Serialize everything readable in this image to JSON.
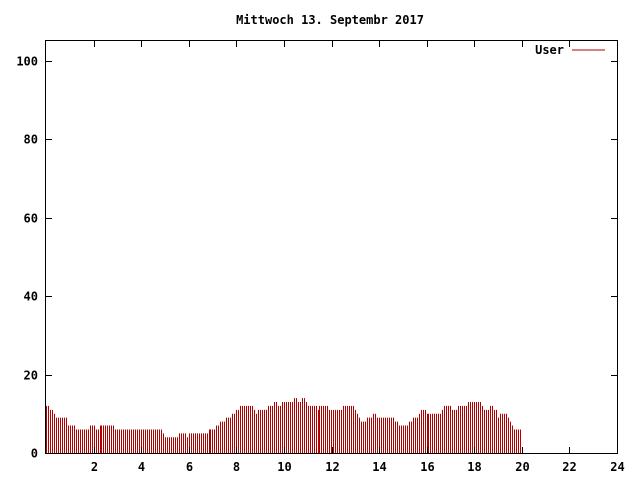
{
  "chart_data": {
    "type": "bar",
    "title": "Mittwoch 13. Septembr 2017",
    "xlabel": "",
    "ylabel": "",
    "xlim": [
      0,
      24
    ],
    "ylim": [
      0,
      105
    ],
    "x_ticks": [
      2,
      4,
      6,
      8,
      10,
      12,
      14,
      16,
      18,
      20,
      22,
      24
    ],
    "y_ticks": [
      0,
      20,
      40,
      60,
      80,
      100
    ],
    "grid": false,
    "legend_position": "top-right",
    "colors": {
      "series": "#b00000",
      "axis": "#000000",
      "background": "#ffffff"
    },
    "series": [
      {
        "name": "User",
        "x_start": 0,
        "x_step": 0.0833,
        "values": [
          12,
          12,
          11,
          11,
          10,
          9,
          9,
          9,
          9,
          9,
          9,
          7,
          7,
          7,
          7,
          6,
          6,
          6,
          6,
          6,
          6,
          6,
          7,
          7,
          7,
          6,
          6,
          7,
          7,
          7,
          7,
          7,
          7,
          7,
          7,
          6,
          6,
          6,
          6,
          6,
          6,
          6,
          6,
          6,
          6,
          6,
          6,
          6,
          6,
          6,
          6,
          6,
          6,
          6,
          6,
          6,
          6,
          6,
          6,
          5,
          4,
          4,
          4,
          4,
          4,
          4,
          4,
          5,
          5,
          5,
          5,
          4,
          5,
          5,
          5,
          5,
          5,
          5,
          5,
          5,
          5,
          5,
          6,
          6,
          6,
          6,
          7,
          7,
          8,
          8,
          8,
          9,
          9,
          9,
          10,
          10,
          11,
          11,
          12,
          12,
          12,
          12,
          12,
          12,
          12,
          11,
          10,
          11,
          11,
          11,
          11,
          11,
          12,
          12,
          12,
          13,
          13,
          12,
          12,
          13,
          13,
          13,
          13,
          13,
          13,
          14,
          14,
          13,
          13,
          14,
          14,
          13,
          12,
          12,
          12,
          12,
          12,
          11,
          12,
          12,
          12,
          12,
          12,
          11,
          11,
          11,
          11,
          11,
          11,
          11,
          12,
          12,
          12,
          12,
          12,
          12,
          11,
          10,
          9,
          8,
          8,
          8,
          9,
          9,
          9,
          10,
          10,
          9,
          9,
          9,
          9,
          9,
          9,
          9,
          9,
          9,
          8,
          8,
          7,
          7,
          7,
          7,
          7,
          8,
          8,
          9,
          9,
          9,
          10,
          11,
          11,
          11,
          10,
          10,
          10,
          10,
          10,
          10,
          10,
          10,
          11,
          12,
          12,
          12,
          12,
          11,
          11,
          11,
          12,
          12,
          12,
          12,
          12,
          13,
          13,
          13,
          13,
          13,
          13,
          13,
          12,
          11,
          11,
          11,
          12,
          12,
          11,
          11,
          9,
          10,
          10,
          10,
          10,
          9,
          8,
          7,
          6,
          6,
          6,
          6
        ]
      }
    ]
  }
}
